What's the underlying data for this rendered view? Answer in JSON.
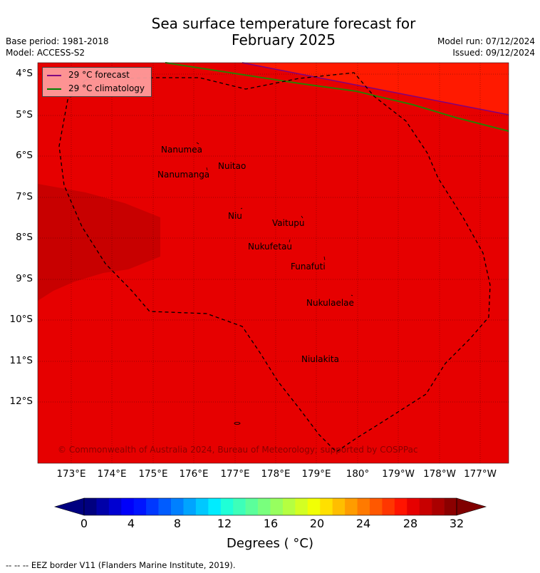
{
  "header": {
    "title_line1": "Sea surface temperature forecast for",
    "title_line2": "February 2025",
    "base_period": "Base period: 1981-2018",
    "model": "Model: ACCESS-S2",
    "model_run": "Model run: 07/12/2024",
    "issued": "Issued: 09/12/2024"
  },
  "map": {
    "latitude_labels": [
      "4°S",
      "5°S",
      "6°S",
      "7°S",
      "8°S",
      "9°S",
      "10°S",
      "11°S",
      "12°S"
    ],
    "longitude_labels": [
      "173°E",
      "174°E",
      "175°E",
      "176°E",
      "177°E",
      "178°E",
      "179°E",
      "180°",
      "179°W",
      "178°W",
      "177°W"
    ],
    "islands": [
      "Nanumea",
      "Nuitao",
      "Nanumanga",
      "Niu",
      "Vaitupu",
      "Nukufetau",
      "Funafuti",
      "Nukulaelae",
      "Niulakita"
    ],
    "copyright": "© Commonwealth of Australia 2024, Bureau of Meteorology; supported by COSPPac",
    "legend": {
      "forecast_label": "29 °C  forecast",
      "climatology_label": "29 °C  climatology",
      "forecast_color": "#800080",
      "climatology_color": "#008000"
    },
    "fill_colors": {
      "background": "#e60000",
      "warmer": "#ff1a00",
      "cooler": "#c80000"
    }
  },
  "colorbar": {
    "tick_labels": [
      "0",
      "4",
      "8",
      "12",
      "16",
      "20",
      "24",
      "28",
      "32"
    ],
    "label": "Degrees ( °C)",
    "colors": [
      "#00007f",
      "#0000a8",
      "#0000d1",
      "#0000fa",
      "#0014ff",
      "#0038ff",
      "#005cff",
      "#0080ff",
      "#00a4ff",
      "#00c8ff",
      "#00ecff",
      "#1fffd7",
      "#3dffb9",
      "#5bff9b",
      "#79ff7d",
      "#97ff5f",
      "#b5ff41",
      "#d3ff23",
      "#f1ff05",
      "#ffe000",
      "#ffbe00",
      "#ff9c00",
      "#ff7a00",
      "#ff5800",
      "#ff3600",
      "#ff1400",
      "#e60000",
      "#c80000",
      "#aa0000",
      "#8b0000"
    ],
    "under_color": "#000080",
    "over_color": "#800000"
  },
  "footnote": "--  --  -- EEZ border V11 (Flanders Marine Institute, 2019)."
}
